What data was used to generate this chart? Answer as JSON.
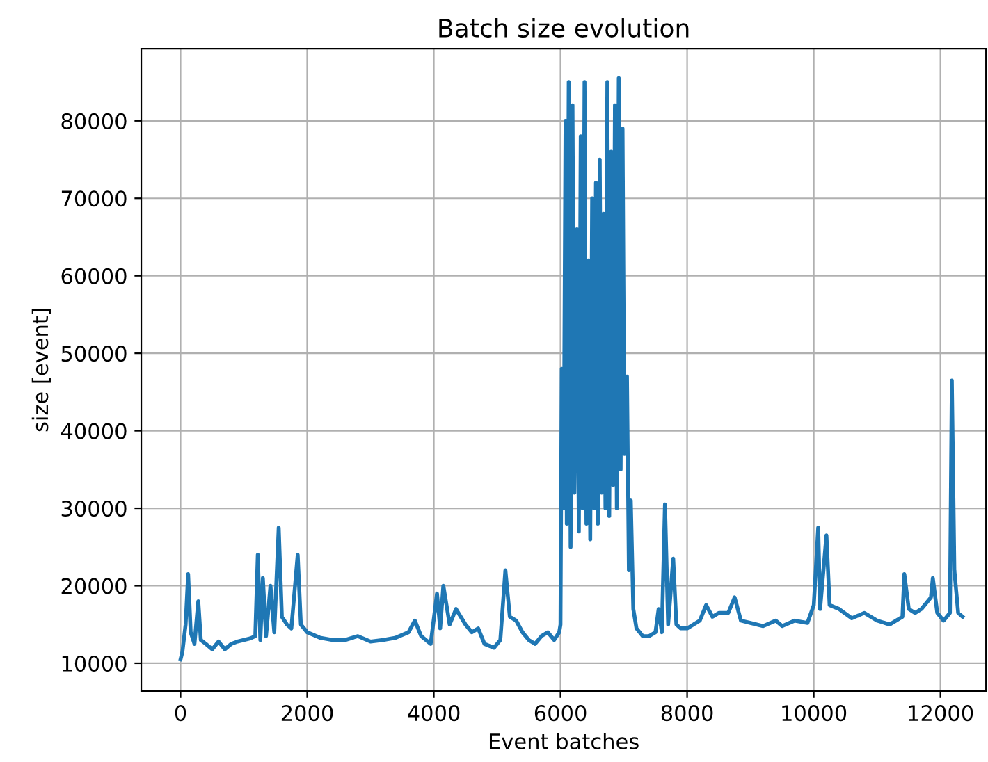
{
  "chart_data": {
    "type": "line",
    "title": "Batch size evolution",
    "xlabel": "Event batches",
    "ylabel": "size [event]",
    "x": [
      0,
      30,
      80,
      120,
      160,
      220,
      280,
      320,
      400,
      500,
      600,
      700,
      800,
      900,
      1000,
      1100,
      1180,
      1220,
      1260,
      1300,
      1350,
      1420,
      1480,
      1550,
      1600,
      1680,
      1750,
      1850,
      1900,
      2000,
      2200,
      2400,
      2600,
      2800,
      3000,
      3200,
      3400,
      3600,
      3700,
      3800,
      3950,
      4050,
      4100,
      4150,
      4250,
      4350,
      4500,
      4600,
      4700,
      4800,
      4950,
      5050,
      5130,
      5200,
      5300,
      5400,
      5500,
      5600,
      5700,
      5800,
      5900,
      5980,
      6000,
      6020,
      6050,
      6080,
      6100,
      6130,
      6160,
      6190,
      6220,
      6260,
      6290,
      6320,
      6350,
      6380,
      6410,
      6440,
      6470,
      6500,
      6530,
      6560,
      6590,
      6620,
      6650,
      6680,
      6710,
      6740,
      6770,
      6800,
      6830,
      6860,
      6890,
      6920,
      6950,
      6980,
      7010,
      7050,
      7080,
      7110,
      7150,
      7200,
      7300,
      7400,
      7500,
      7550,
      7600,
      7650,
      7700,
      7780,
      7830,
      7900,
      8000,
      8200,
      8300,
      8400,
      8500,
      8650,
      8750,
      8850,
      9000,
      9200,
      9400,
      9500,
      9700,
      9900,
      10000,
      10070,
      10100,
      10200,
      10250,
      10400,
      10600,
      10800,
      11000,
      11200,
      11400,
      11430,
      11500,
      11600,
      11700,
      11850,
      11880,
      11950,
      12050,
      12150,
      12180,
      12220,
      12280,
      12350
    ],
    "values": [
      10500,
      11500,
      15000,
      21500,
      14000,
      12500,
      18000,
      13000,
      12500,
      11800,
      12800,
      11800,
      12500,
      12800,
      13000,
      13200,
      13500,
      24000,
      13000,
      21000,
      13500,
      20000,
      14000,
      27500,
      16000,
      15000,
      14500,
      24000,
      15000,
      14000,
      13300,
      13000,
      13000,
      13500,
      12800,
      13000,
      13300,
      14000,
      15500,
      13500,
      12500,
      19000,
      14500,
      20000,
      15000,
      17000,
      15000,
      14000,
      14500,
      12500,
      12000,
      13000,
      22000,
      16000,
      15500,
      14000,
      13000,
      12500,
      13500,
      14000,
      13000,
      14000,
      15000,
      48000,
      30000,
      80000,
      28000,
      85000,
      25000,
      82000,
      32000,
      66000,
      27000,
      78000,
      30000,
      85000,
      28000,
      62000,
      26000,
      70000,
      30000,
      72000,
      28000,
      75000,
      32000,
      68000,
      30000,
      85000,
      29000,
      76000,
      33000,
      82000,
      30000,
      85500,
      35000,
      79000,
      37000,
      47000,
      22000,
      31000,
      17000,
      14500,
      13500,
      13500,
      14000,
      17000,
      14000,
      30500,
      15000,
      23500,
      15000,
      14500,
      14500,
      15500,
      17500,
      16000,
      16500,
      16500,
      18500,
      15500,
      15200,
      14800,
      15500,
      14800,
      15500,
      15200,
      17500,
      27500,
      17000,
      26500,
      17500,
      17000,
      15800,
      16500,
      15500,
      15000,
      16000,
      21500,
      17000,
      16500,
      17000,
      18500,
      21000,
      16500,
      15500,
      16500,
      46500,
      22000,
      16500,
      16000
    ],
    "color": "#1f77b4",
    "xlim": [
      -620,
      12720
    ],
    "ylim": [
      6400,
      89300
    ],
    "xticks": [
      0,
      2000,
      4000,
      6000,
      8000,
      10000,
      12000
    ],
    "yticks": [
      10000,
      20000,
      30000,
      40000,
      50000,
      60000,
      70000,
      80000
    ],
    "grid": true
  }
}
